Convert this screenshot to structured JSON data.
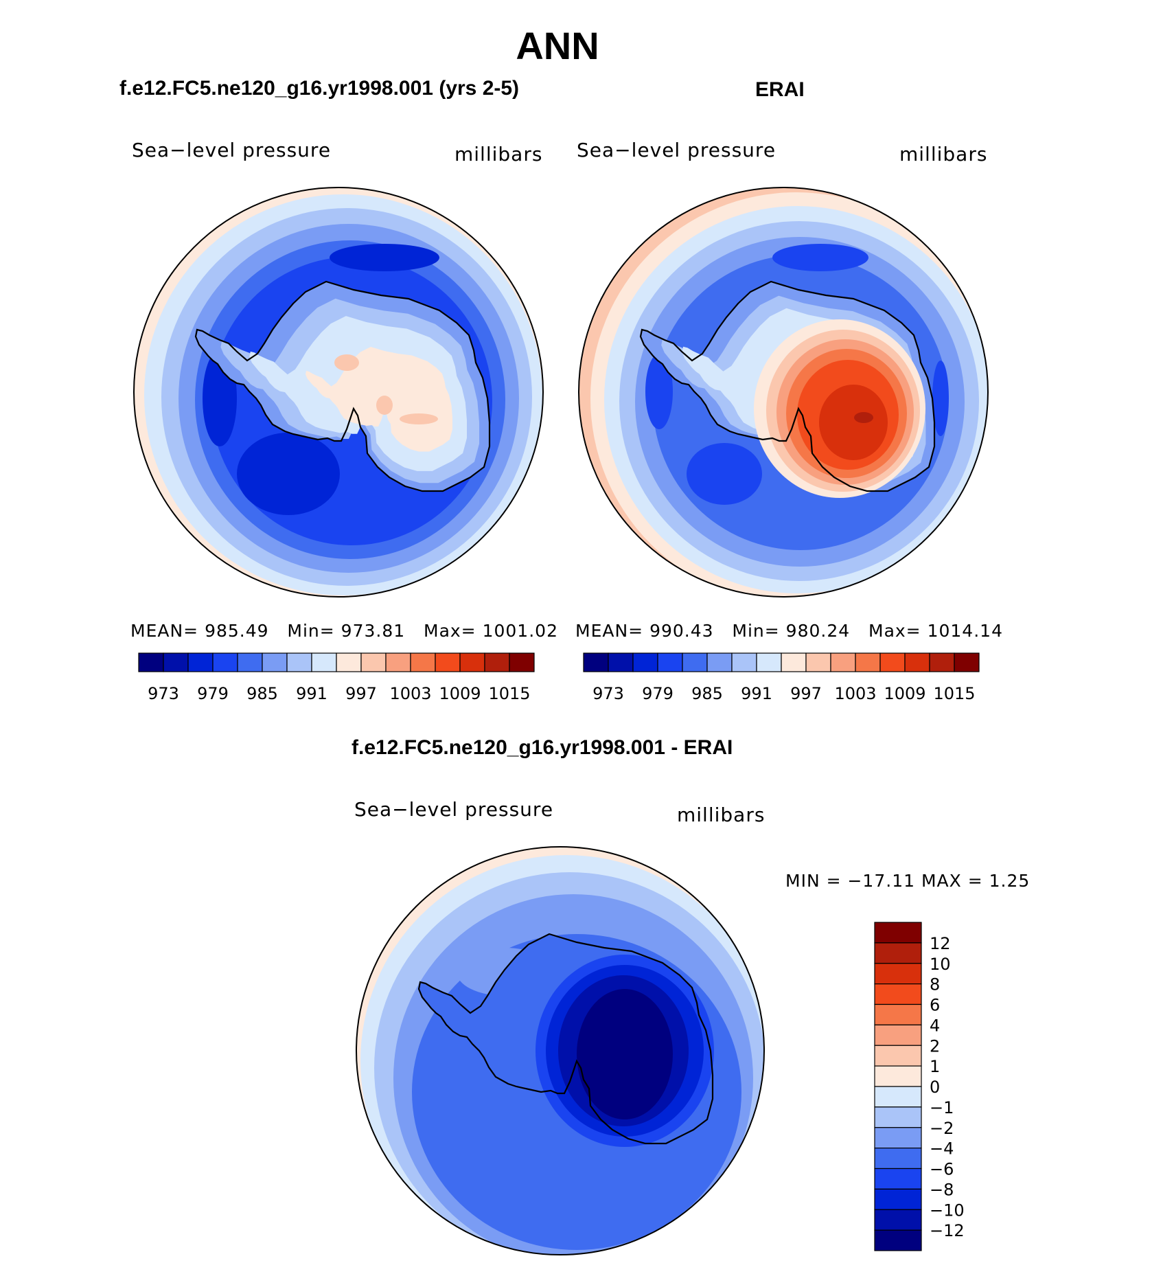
{
  "title": "ANN",
  "panels": [
    {
      "title": "f.e12.FC5.ne120_g16.yr1998.001 (yrs 2-5)",
      "variable": "Sea−level pressure",
      "units": "millibars",
      "stats": {
        "mean_label": "MEAN=",
        "mean": "985.49",
        "min_label": "Min=",
        "min": "973.81",
        "max_label": "Max=",
        "max": "1001.02"
      }
    },
    {
      "title": "ERAI",
      "variable": "Sea−level pressure",
      "units": "millibars",
      "stats": {
        "mean_label": "MEAN=",
        "mean": "990.43",
        "min_label": "Min=",
        "min": "980.24",
        "max_label": "Max=",
        "max": "1014.14"
      }
    },
    {
      "title": "f.e12.FC5.ne120_g16.yr1998.001 - ERAI",
      "variable": "Sea−level pressure",
      "units": "millibars",
      "stats_text": "MIN = −17.11 MAX =    1.25"
    }
  ],
  "colorbar_abs": {
    "colors": [
      "#00007f",
      "#0010aa",
      "#0024d6",
      "#1a44f0",
      "#3f6cf0",
      "#7a9cf4",
      "#aac4f8",
      "#d6e8fc",
      "#fde9dc",
      "#fbc7ae",
      "#f8a07f",
      "#f57748",
      "#f24b1c",
      "#d8300c",
      "#b01f0c",
      "#7f0000"
    ],
    "labels": [
      "973",
      "979",
      "985",
      "991",
      "997",
      "1003",
      "1009",
      "1015"
    ]
  },
  "colorbar_diff": {
    "colors": [
      "#7f0000",
      "#b01f0c",
      "#d8300c",
      "#f24b1c",
      "#f57748",
      "#f8a07f",
      "#fbc7ae",
      "#fde9dc",
      "#d6e8fc",
      "#aac4f8",
      "#7a9cf4",
      "#3f6cf0",
      "#1a44f0",
      "#0024d6",
      "#0010aa",
      "#00007f"
    ],
    "labels": [
      "12",
      "10",
      "8",
      "6",
      "4",
      "2",
      "1",
      "0",
      "−1",
      "−2",
      "−4",
      "−6",
      "−8",
      "−10",
      "−12"
    ]
  }
}
